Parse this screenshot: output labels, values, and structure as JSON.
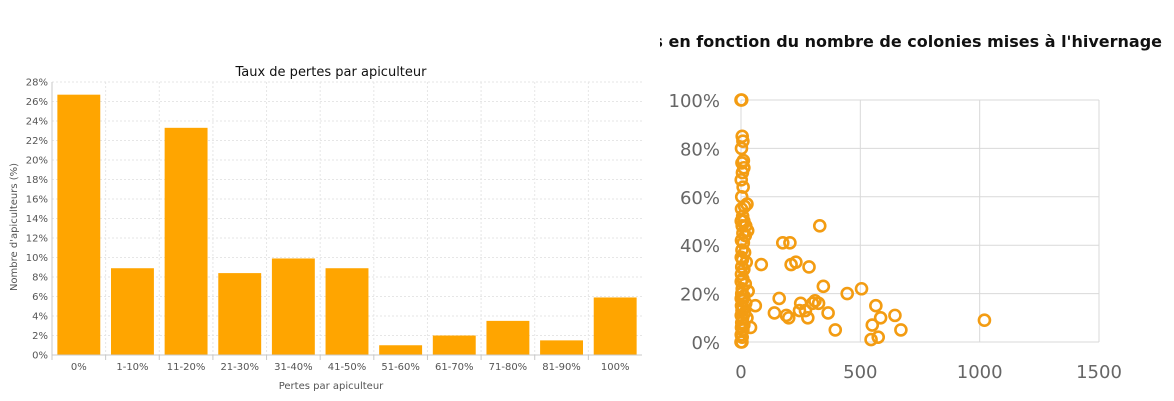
{
  "chart_data": [
    {
      "type": "bar",
      "title": "Taux de pertes par apiculteur",
      "xlabel": "Pertes par apiculteur",
      "ylabel": "Nombre d'apiculteurs (%)",
      "categories": [
        "0%",
        "1-10%",
        "11-20%",
        "21-30%",
        "31-40%",
        "41-50%",
        "51-60%",
        "61-70%",
        "71-80%",
        "81-90%",
        "100%"
      ],
      "values": [
        26.7,
        8.9,
        23.3,
        8.4,
        9.9,
        8.9,
        1.0,
        2.0,
        3.5,
        1.5,
        5.9
      ],
      "ylim": [
        0,
        28
      ],
      "yticks": [
        "0%",
        "2%",
        "4%",
        "6%",
        "8%",
        "10%",
        "12%",
        "14%",
        "16%",
        "18%",
        "20%",
        "22%",
        "24%",
        "26%",
        "28%"
      ],
      "color": "#FFA500",
      "grid": true
    },
    {
      "type": "scatter",
      "title": "Taux de pertes en fonction du nombre de colonies mises à l'hivernage",
      "xlabel": "",
      "ylabel": "",
      "xlim": [
        0,
        1500
      ],
      "ylim": [
        0,
        1
      ],
      "xticks": [
        "0",
        "500",
        "1000",
        "1500"
      ],
      "yticks": [
        "0%",
        "20%",
        "40%",
        "60%",
        "80%",
        "100%"
      ],
      "color": "#F39C12",
      "marker": "open-circle",
      "grid": true,
      "points": [
        [
          0,
          1.0
        ],
        [
          3,
          1.0
        ],
        [
          5,
          0.85
        ],
        [
          8,
          0.83
        ],
        [
          2,
          0.8
        ],
        [
          10,
          0.75
        ],
        [
          4,
          0.74
        ],
        [
          12,
          0.72
        ],
        [
          6,
          0.7
        ],
        [
          1,
          0.67
        ],
        [
          9,
          0.64
        ],
        [
          3,
          0.6
        ],
        [
          15,
          0.56
        ],
        [
          25,
          0.57
        ],
        [
          2,
          0.55
        ],
        [
          7,
          0.52
        ],
        [
          1,
          0.5
        ],
        [
          5,
          0.48
        ],
        [
          12,
          0.5
        ],
        [
          20,
          0.48
        ],
        [
          8,
          0.45
        ],
        [
          18,
          0.44
        ],
        [
          28,
          0.46
        ],
        [
          2,
          0.42
        ],
        [
          10,
          0.41
        ],
        [
          4,
          0.38
        ],
        [
          15,
          0.37
        ],
        [
          1,
          0.35
        ],
        [
          6,
          0.34
        ],
        [
          22,
          0.33
        ],
        [
          3,
          0.31
        ],
        [
          12,
          0.3
        ],
        [
          2,
          0.28
        ],
        [
          8,
          0.26
        ],
        [
          1,
          0.25
        ],
        [
          18,
          0.24
        ],
        [
          5,
          0.22
        ],
        [
          30,
          0.21
        ],
        [
          3,
          0.2
        ],
        [
          12,
          0.19
        ],
        [
          1,
          0.18
        ],
        [
          6,
          0.17
        ],
        [
          20,
          0.16
        ],
        [
          2,
          0.15
        ],
        [
          9,
          0.14
        ],
        [
          4,
          0.13
        ],
        [
          15,
          0.12
        ],
        [
          1,
          0.11
        ],
        [
          7,
          0.1
        ],
        [
          25,
          0.1
        ],
        [
          3,
          0.08
        ],
        [
          12,
          0.07
        ],
        [
          2,
          0.06
        ],
        [
          8,
          0.05
        ],
        [
          1,
          0.03
        ],
        [
          5,
          0.02
        ],
        [
          0,
          0.0
        ],
        [
          4,
          0.0
        ],
        [
          40,
          0.06
        ],
        [
          60,
          0.15
        ],
        [
          85,
          0.32
        ],
        [
          140,
          0.12
        ],
        [
          160,
          0.18
        ],
        [
          175,
          0.41
        ],
        [
          190,
          0.11
        ],
        [
          200,
          0.1
        ],
        [
          205,
          0.41
        ],
        [
          210,
          0.32
        ],
        [
          230,
          0.33
        ],
        [
          245,
          0.13
        ],
        [
          250,
          0.16
        ],
        [
          270,
          0.13
        ],
        [
          280,
          0.1
        ],
        [
          285,
          0.31
        ],
        [
          300,
          0.16
        ],
        [
          310,
          0.17
        ],
        [
          325,
          0.16
        ],
        [
          330,
          0.48
        ],
        [
          345,
          0.23
        ],
        [
          365,
          0.12
        ],
        [
          395,
          0.05
        ],
        [
          445,
          0.2
        ],
        [
          505,
          0.22
        ],
        [
          545,
          0.01
        ],
        [
          550,
          0.07
        ],
        [
          565,
          0.15
        ],
        [
          575,
          0.02
        ],
        [
          585,
          0.1
        ],
        [
          645,
          0.11
        ],
        [
          670,
          0.05
        ],
        [
          1020,
          0.09
        ]
      ]
    }
  ]
}
